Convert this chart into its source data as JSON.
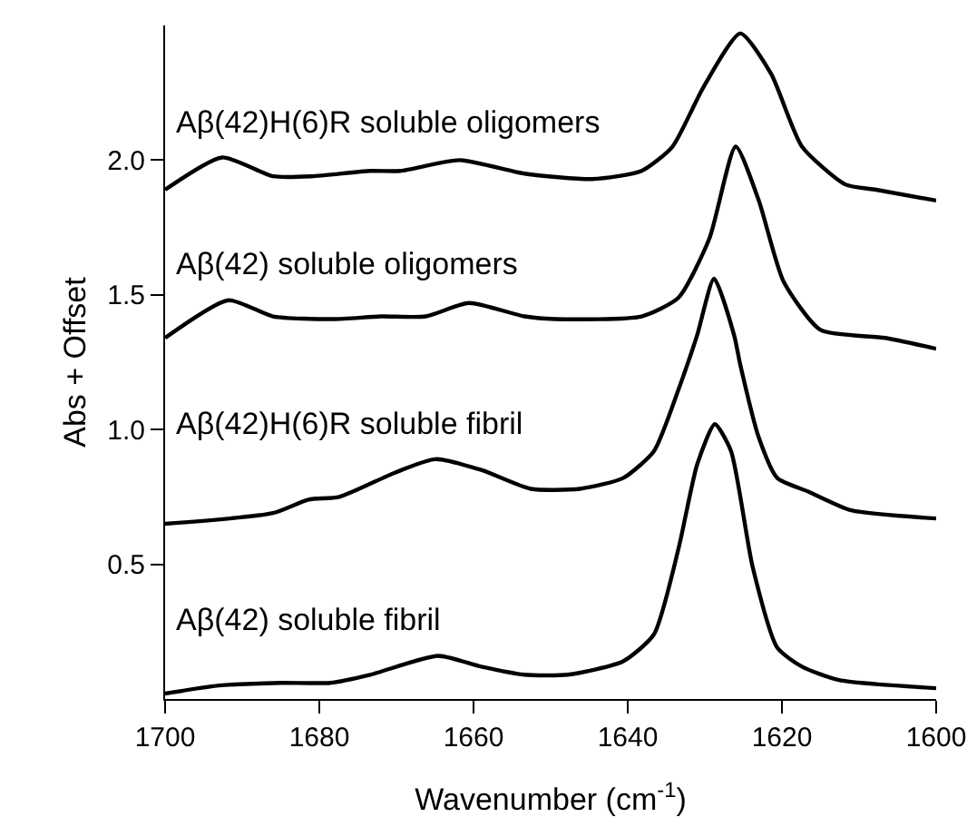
{
  "chart_data": {
    "type": "line",
    "xlabel": "Wavenumber (cm$^{-1}$)",
    "ylabel": "Abs + Offset",
    "xlim": [
      1700,
      1600
    ],
    "xticks": [
      1700,
      1680,
      1660,
      1640,
      1620,
      1600
    ],
    "ylim": [
      0,
      2.5
    ],
    "yticks": [
      {
        "value": 0.5,
        "label": "0.5"
      },
      {
        "value": 1.0,
        "label": "1.0"
      },
      {
        "value": 1.5,
        "label": "1.5"
      },
      {
        "value": 2.0,
        "label": "2.0"
      }
    ],
    "grid": false,
    "legend": false,
    "series": [
      {
        "name": "Aβ(42)H(6)R soluble oligomers",
        "color": "#000000",
        "x": [
          1700,
          1692.6,
          1686,
          1681,
          1673.4,
          1669.5,
          1661.8,
          1653.4,
          1644.6,
          1638.2,
          1634.2,
          1630.2,
          1625.4,
          1621.4,
          1617.4,
          1611.8,
          1607.8,
          1600
        ],
        "values": [
          1.89,
          2.01,
          1.94,
          1.94,
          1.96,
          1.96,
          2.0,
          1.95,
          1.93,
          1.96,
          2.05,
          2.27,
          2.47,
          2.32,
          2.05,
          1.91,
          1.89,
          1.85
        ]
      },
      {
        "name": "Aβ(42) soluble oligomers",
        "color": "#000000",
        "x": [
          1700,
          1691.8,
          1686,
          1678.2,
          1672,
          1666.2,
          1660.6,
          1653.4,
          1649.4,
          1638.2,
          1633.4,
          1629.4,
          1626,
          1623,
          1619.8,
          1615,
          1606.6,
          1600
        ],
        "values": [
          1.34,
          1.48,
          1.42,
          1.41,
          1.42,
          1.42,
          1.47,
          1.42,
          1.41,
          1.42,
          1.49,
          1.71,
          2.05,
          1.85,
          1.55,
          1.37,
          1.34,
          1.3
        ]
      },
      {
        "name": "Aβ(42)H(6)R soluble fibril",
        "color": "#000000",
        "x": [
          1700,
          1686,
          1681.4,
          1677.4,
          1670.2,
          1665,
          1659,
          1652.6,
          1646.2,
          1640.6,
          1636.6,
          1633.4,
          1631,
          1628.8,
          1626.2,
          1625.4,
          1623,
          1620.6,
          1616.6,
          1611,
          1600
        ],
        "values": [
          0.65,
          0.69,
          0.74,
          0.75,
          0.84,
          0.89,
          0.85,
          0.78,
          0.78,
          0.82,
          0.92,
          1.15,
          1.35,
          1.56,
          1.35,
          1.24,
          0.97,
          0.82,
          0.77,
          0.7,
          0.67
        ]
      },
      {
        "name": "Aβ(42) soluble fibril",
        "color": "#000000",
        "x": [
          1700,
          1693,
          1685,
          1678.6,
          1673.4,
          1664.6,
          1659,
          1653.4,
          1647.8,
          1640.6,
          1636.6,
          1633.4,
          1631,
          1628.7,
          1626.6,
          1623.8,
          1620.6,
          1617.4,
          1612.6,
          1600
        ],
        "values": [
          0.02,
          0.05,
          0.06,
          0.06,
          0.09,
          0.16,
          0.12,
          0.09,
          0.09,
          0.14,
          0.24,
          0.56,
          0.87,
          1.02,
          0.92,
          0.49,
          0.19,
          0.12,
          0.07,
          0.04
        ]
      }
    ]
  }
}
